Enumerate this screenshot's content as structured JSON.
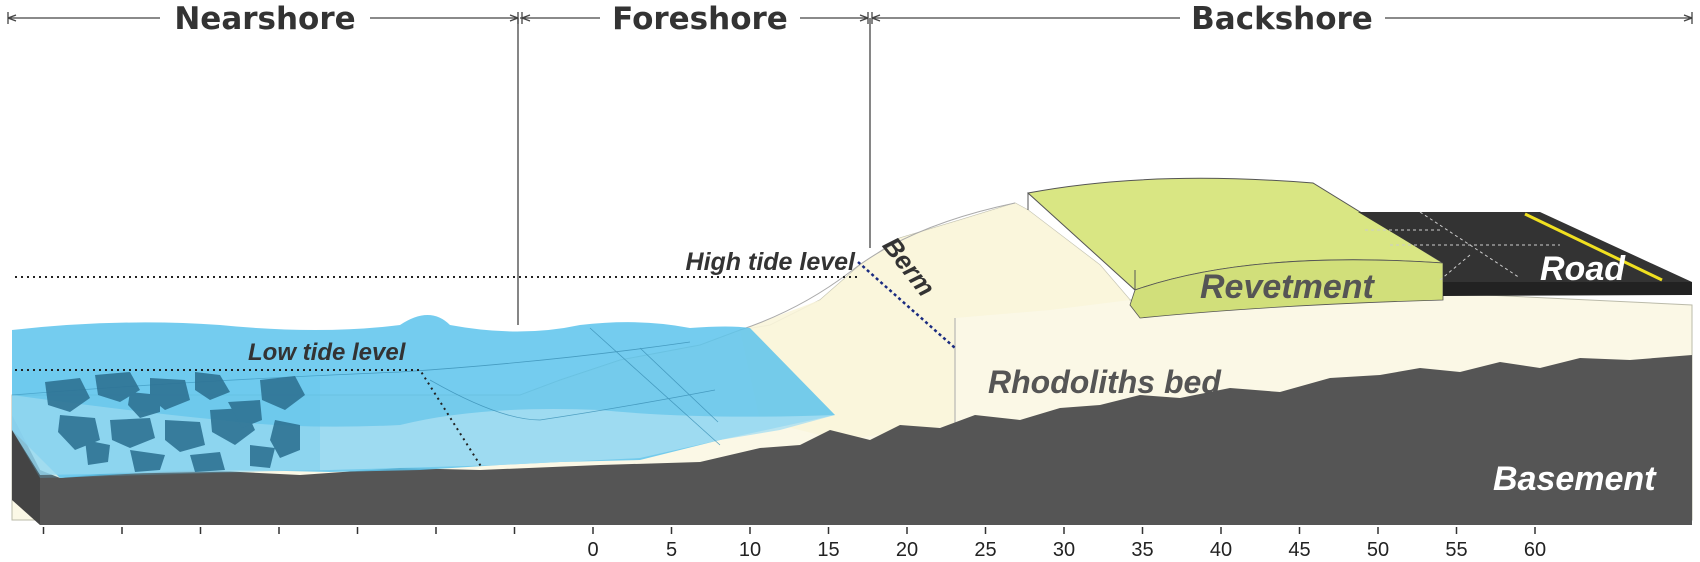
{
  "zones": {
    "nearshore": "Nearshore",
    "foreshore": "Foreshore",
    "backshore": "Backshore"
  },
  "labels": {
    "high_tide": "High tide level",
    "low_tide": "Low tide level",
    "berm": "Berm",
    "revetment": "Revetment",
    "road": "Road",
    "rhodoliths": "Rhodoliths bed",
    "basement": "Basement"
  },
  "axis": {
    "tick_labels": [
      "0",
      "5",
      "10",
      "15",
      "20",
      "25",
      "30",
      "35",
      "40",
      "45",
      "50",
      "55",
      "60"
    ]
  },
  "colors": {
    "sea": "#5cc3ec",
    "sea_light": "#a9def2",
    "sand": "#fbf8e6",
    "revetment": "#d9e683",
    "road": "#333333",
    "basement": "#555555",
    "rock": "#1f5877",
    "road_line": "#f0e020"
  }
}
